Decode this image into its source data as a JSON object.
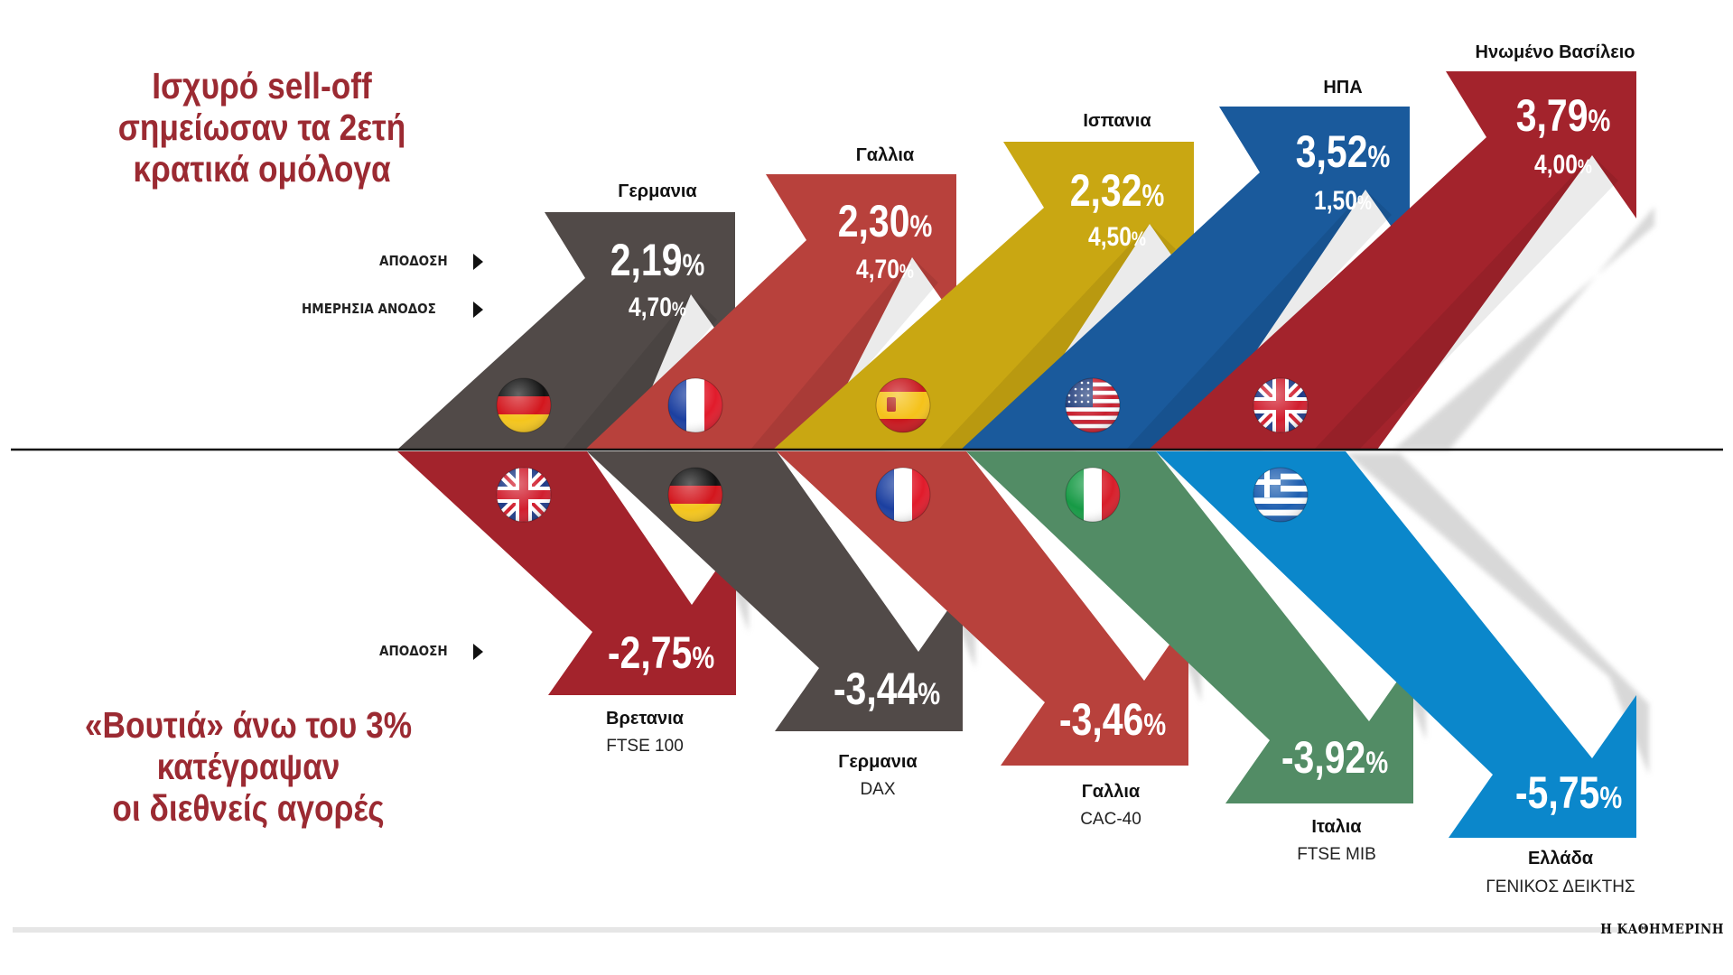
{
  "headline_top": [
    "Ισχυρό sell-off",
    "σημείωσαν τα 2ετή",
    "κρατικά ομόλογα"
  ],
  "headline_bottom": [
    "«Βουτιά» άνω του 3%",
    "κατέγραψαν",
    "οι διεθνείς αγορές"
  ],
  "labels": {
    "yield": "ΑΠΟΔΟΣΗ",
    "daily_rise": "ΗΜΕΡΗΣΙΑ ΑΝΟΔΟΣ",
    "yield_bottom": "ΑΠΟΔΟΣΗ"
  },
  "credit": "Η ΚΑΘΗΜΕΡΙΝΗ",
  "colors": {
    "charcoal": "#514a48",
    "red": "#b8413c",
    "mustard": "#c9a712",
    "navy": "#1a5a9c",
    "crimson": "#a3232c",
    "green": "#528c65",
    "sky": "#0b87cb",
    "headline": "#9b2a32"
  },
  "chart_data": [
    {
      "type": "bar",
      "title": "Ισχυρό sell-off σημείωσαν τα 2ετή κρατικά ομόλογα",
      "categories": [
        "Γερμανια",
        "Γαλλια",
        "Ισπανια",
        "ΗΠΑ",
        "Ηνωμένο Βασίλειο"
      ],
      "series": [
        {
          "name": "ΑΠΟΔΟΣΗ",
          "values": [
            2.19,
            2.3,
            2.32,
            3.52,
            3.79
          ],
          "labels": [
            "2,19",
            "2,30",
            "2,32",
            "3,52",
            "3,79"
          ]
        },
        {
          "name": "ΗΜΕΡΗΣΙΑ ΑΝΟΔΟΣ",
          "values": [
            4.7,
            4.7,
            4.5,
            1.5,
            4.0
          ],
          "labels": [
            "4,70",
            "4,70",
            "4,50",
            "1,50",
            "4,00"
          ]
        }
      ],
      "flags": [
        "de",
        "fr",
        "es",
        "us",
        "gb"
      ],
      "colors": [
        "charcoal",
        "red",
        "mustard",
        "navy",
        "crimson"
      ],
      "unit": "%"
    },
    {
      "type": "bar",
      "title": "«Βουτιά» άνω του 3% κατέγραψαν οι διεθνείς αγορές",
      "categories": [
        "Βρετανια",
        "Γερμανια",
        "Γαλλια",
        "Ιταλια",
        "Ελλάδα"
      ],
      "indices": [
        "FTSE 100",
        "DAX",
        "CAC-40",
        "FTSE MIB",
        "ΓΕΝΙΚΟΣ ΔΕΙΚΤΗΣ"
      ],
      "series": [
        {
          "name": "ΑΠΟΔΟΣΗ",
          "values": [
            -2.75,
            -3.44,
            -3.46,
            -3.92,
            -5.75
          ],
          "labels": [
            "-2,75",
            "-3,44",
            "-3,46",
            "-3,92",
            "-5,75"
          ]
        }
      ],
      "flags": [
        "gb",
        "de",
        "fr",
        "it",
        "gr"
      ],
      "colors": [
        "crimson",
        "charcoal",
        "red",
        "green",
        "sky"
      ],
      "unit": "%"
    }
  ]
}
